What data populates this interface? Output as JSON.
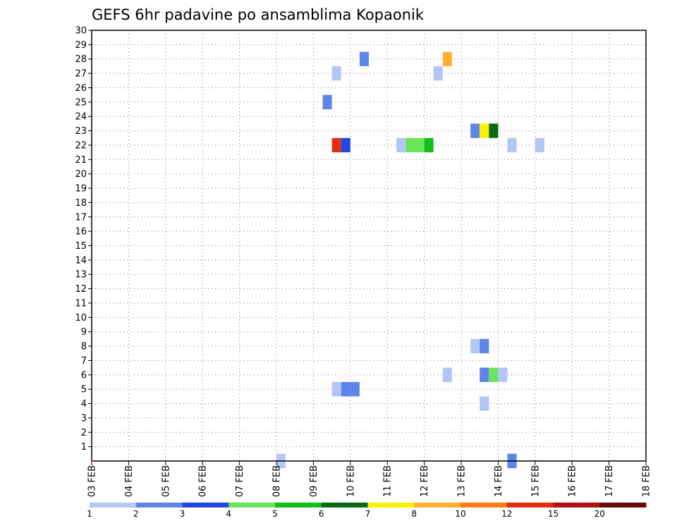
{
  "chart_data": {
    "type": "heatmap",
    "title": "GEFS 6hr padavine po ansamblima Kopaonik",
    "xlabel": "",
    "ylabel": "",
    "grid": true,
    "x_ticks": [
      "03 FEB",
      "04 FEB",
      "05 FEB",
      "06 FEB",
      "07 FEB",
      "08 FEB",
      "09 FEB",
      "10 FEB",
      "11 FEB",
      "12 FEB",
      "13 FEB",
      "14 FEB",
      "15 FEB",
      "16 FEB",
      "17 FEB",
      "18 FEB"
    ],
    "x_range": [
      0,
      60
    ],
    "y_ticks": [
      "1",
      "2",
      "3",
      "4",
      "5",
      "6",
      "7",
      "8",
      "9",
      "10",
      "11",
      "12",
      "13",
      "14",
      "15",
      "16",
      "17",
      "18",
      "19",
      "20",
      "21",
      "22",
      "23",
      "24",
      "25",
      "26",
      "27",
      "28",
      "29",
      "30"
    ],
    "y_range": [
      0,
      30
    ],
    "legend": {
      "placement": "bottom",
      "labels": [
        "1",
        "2",
        "3",
        "4",
        "5",
        "6",
        "7",
        "8",
        "10",
        "12",
        "15",
        "20"
      ],
      "colors": [
        "#b4c6f5",
        "#5d86e8",
        "#1e48e0",
        "#6ae45a",
        "#14be1c",
        "#0a6a14",
        "#fff200",
        "#ffb030",
        "#ff7a10",
        "#e03010",
        "#b01010",
        "#6a0a0a"
      ]
    },
    "cells": [
      {
        "x": 29.5,
        "y": 28,
        "value": 2
      },
      {
        "x": 38.5,
        "y": 28,
        "value": 8
      },
      {
        "x": 26.5,
        "y": 27,
        "value": 1
      },
      {
        "x": 37.5,
        "y": 27,
        "value": 1
      },
      {
        "x": 25.5,
        "y": 25,
        "value": 2
      },
      {
        "x": 26.5,
        "y": 22,
        "value": 10
      },
      {
        "x": 27.5,
        "y": 22,
        "value": 3
      },
      {
        "x": 33.5,
        "y": 22,
        "value": 1
      },
      {
        "x": 34.5,
        "y": 22,
        "value": 4
      },
      {
        "x": 35.5,
        "y": 22,
        "value": 4
      },
      {
        "x": 36.5,
        "y": 22,
        "value": 5
      },
      {
        "x": 41.5,
        "y": 23,
        "value": 2
      },
      {
        "x": 42.5,
        "y": 23,
        "value": 7
      },
      {
        "x": 43.5,
        "y": 23,
        "value": 6
      },
      {
        "x": 45.5,
        "y": 22,
        "value": 1
      },
      {
        "x": 48.5,
        "y": 22,
        "value": 1
      },
      {
        "x": 41.5,
        "y": 8,
        "value": 1
      },
      {
        "x": 42.5,
        "y": 8,
        "value": 2
      },
      {
        "x": 38.5,
        "y": 6,
        "value": 1
      },
      {
        "x": 42.5,
        "y": 6,
        "value": 2
      },
      {
        "x": 43.5,
        "y": 6,
        "value": 4
      },
      {
        "x": 44.5,
        "y": 6,
        "value": 1
      },
      {
        "x": 26.5,
        "y": 5,
        "value": 1
      },
      {
        "x": 27.5,
        "y": 5,
        "value": 2
      },
      {
        "x": 28.5,
        "y": 5,
        "value": 2
      },
      {
        "x": 42.5,
        "y": 4,
        "value": 1
      },
      {
        "x": 20.5,
        "y": 0,
        "value": 1
      },
      {
        "x": 45.5,
        "y": 0,
        "value": 2
      }
    ]
  }
}
